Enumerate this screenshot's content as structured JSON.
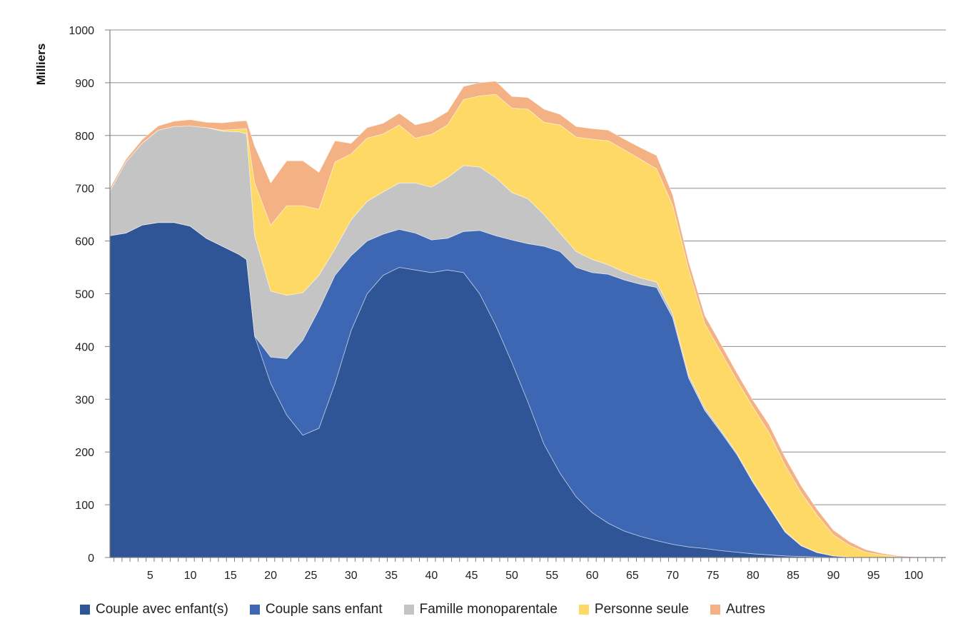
{
  "chart_data": {
    "type": "area",
    "stacked": true,
    "title": "",
    "xlabel": "",
    "ylabel": "Milliers",
    "xlim": [
      0,
      104
    ],
    "ylim": [
      0,
      1000
    ],
    "yticks": [
      0,
      100,
      200,
      300,
      400,
      500,
      600,
      700,
      800,
      900,
      1000
    ],
    "xticks": [
      5,
      10,
      15,
      20,
      25,
      30,
      35,
      40,
      45,
      50,
      55,
      60,
      65,
      70,
      75,
      80,
      85,
      90,
      95,
      100
    ],
    "grid": "horizontal",
    "legend_position": "bottom",
    "x": [
      0,
      2,
      4,
      6,
      8,
      10,
      12,
      14,
      16,
      17,
      18,
      20,
      22,
      24,
      26,
      28,
      30,
      32,
      34,
      36,
      38,
      40,
      42,
      44,
      46,
      48,
      50,
      52,
      54,
      56,
      58,
      60,
      62,
      64,
      66,
      68,
      70,
      72,
      74,
      76,
      78,
      80,
      82,
      84,
      86,
      88,
      90,
      92,
      94,
      96,
      98,
      100,
      102,
      104
    ],
    "series": [
      {
        "name": "Couple avec enfant(s)",
        "color": "#2F5597",
        "values": [
          610,
          615,
          630,
          635,
          635,
          628,
          605,
          590,
          575,
          565,
          420,
          330,
          270,
          232,
          245,
          330,
          430,
          500,
          535,
          550,
          545,
          540,
          545,
          540,
          500,
          440,
          370,
          295,
          215,
          160,
          115,
          85,
          65,
          50,
          40,
          32,
          25,
          20,
          17,
          13,
          10,
          7,
          5,
          3,
          2,
          1,
          0,
          0,
          0,
          0,
          0,
          0,
          0,
          0
        ]
      },
      {
        "name": "Couple sans enfant",
        "color": "#3D67B2",
        "values": [
          0,
          0,
          0,
          0,
          0,
          0,
          0,
          0,
          0,
          0,
          0,
          50,
          107,
          180,
          225,
          205,
          142,
          100,
          78,
          72,
          70,
          62,
          60,
          78,
          120,
          170,
          232,
          300,
          375,
          420,
          435,
          455,
          472,
          476,
          478,
          480,
          430,
          320,
          262,
          225,
          185,
          135,
          90,
          45,
          20,
          8,
          3,
          1,
          0,
          0,
          0,
          0,
          0,
          0
        ]
      },
      {
        "name": "Famille monoparentale",
        "color": "#C4C4C4",
        "values": [
          85,
          135,
          155,
          175,
          182,
          190,
          210,
          218,
          232,
          238,
          190,
          125,
          120,
          90,
          65,
          50,
          68,
          75,
          80,
          88,
          95,
          100,
          115,
          125,
          120,
          110,
          90,
          85,
          60,
          35,
          30,
          25,
          18,
          15,
          12,
          10,
          8,
          6,
          5,
          4,
          3,
          3,
          2,
          2,
          1,
          1,
          0,
          0,
          0,
          0,
          0,
          0,
          0,
          0
        ]
      },
      {
        "name": "Personne seule",
        "color": "#FFD966",
        "values": [
          0,
          0,
          0,
          0,
          0,
          0,
          0,
          2,
          5,
          10,
          100,
          125,
          170,
          165,
          125,
          165,
          125,
          120,
          110,
          110,
          85,
          100,
          100,
          125,
          135,
          158,
          160,
          170,
          175,
          205,
          217,
          228,
          235,
          232,
          225,
          215,
          205,
          200,
          160,
          148,
          138,
          140,
          140,
          125,
          100,
          70,
          40,
          22,
          10,
          5,
          1,
          0,
          0,
          0
        ]
      },
      {
        "name": "Autres",
        "color": "#F4B183",
        "values": [
          5,
          5,
          7,
          8,
          10,
          12,
          10,
          14,
          15,
          15,
          70,
          80,
          85,
          85,
          70,
          40,
          20,
          20,
          20,
          22,
          25,
          25,
          25,
          25,
          25,
          25,
          22,
          22,
          25,
          20,
          20,
          20,
          20,
          20,
          22,
          25,
          20,
          15,
          15,
          15,
          14,
          13,
          15,
          15,
          13,
          11,
          9,
          7,
          5,
          3,
          2,
          1,
          0,
          0
        ]
      }
    ]
  }
}
